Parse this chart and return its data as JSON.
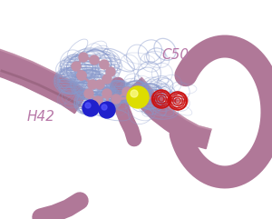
{
  "bg_color": "#ffffff",
  "label_C50": "C50",
  "label_H42": "H42",
  "label_color": "#b878a8",
  "label_fontsize": 11,
  "ribbon_color": "#b07898",
  "atom_color_C": "#c090a8",
  "atom_color_N": "#2020cc",
  "atom_color_S": "#dddd00",
  "atom_color_O_red": "#cc1010",
  "mesh_color": "#8899cc",
  "figsize": [
    3.0,
    2.41
  ],
  "dpi": 100
}
